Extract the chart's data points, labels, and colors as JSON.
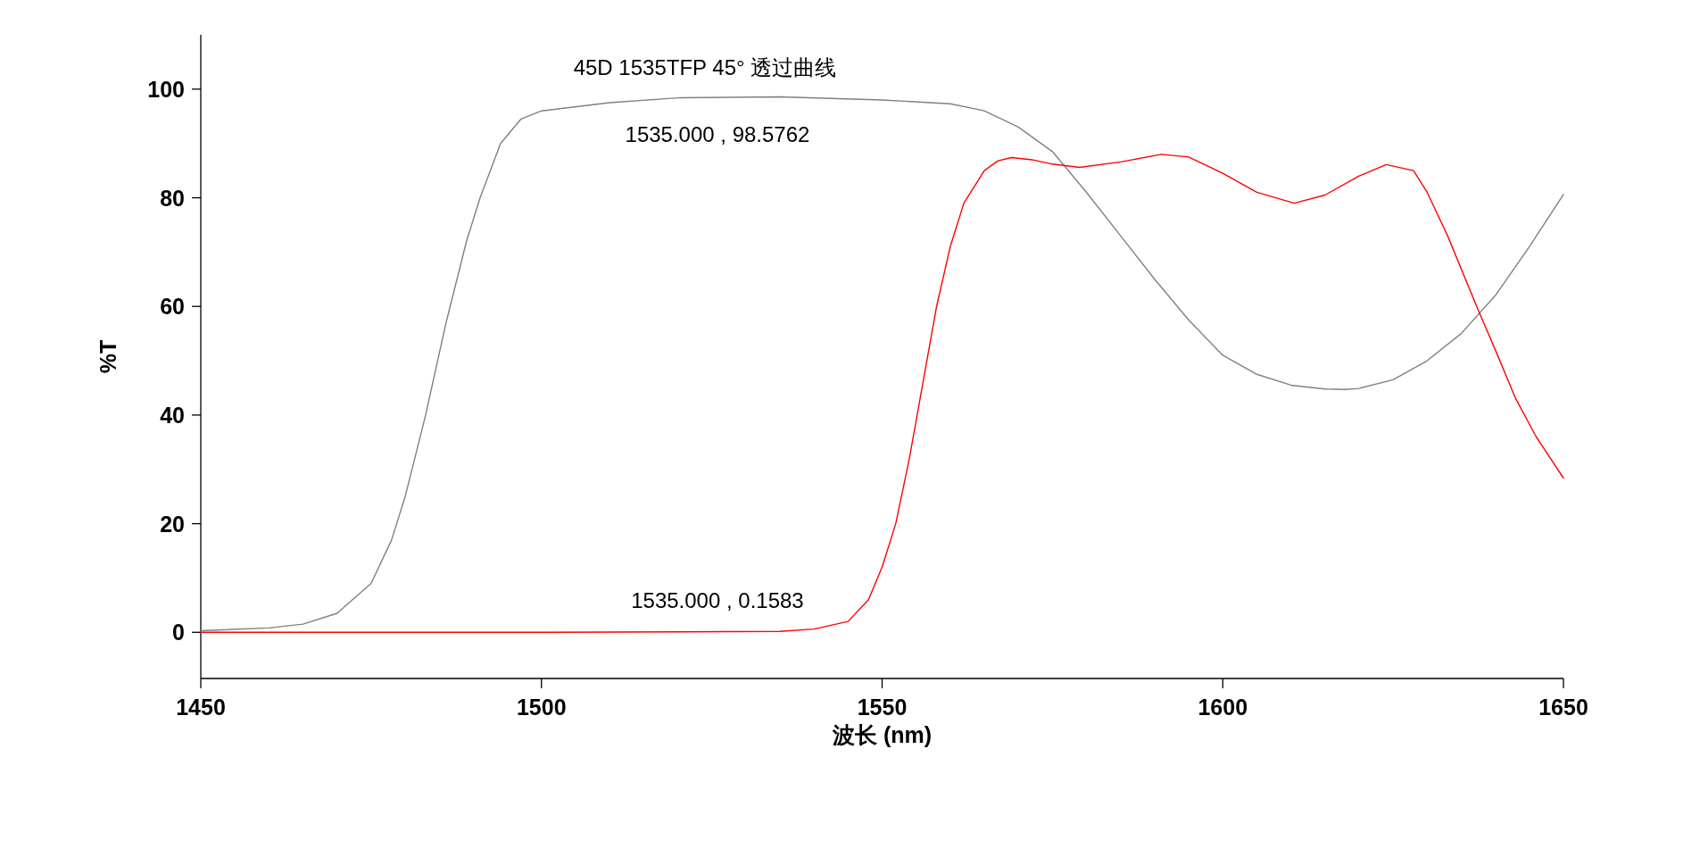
{
  "chart_data": {
    "type": "line",
    "title": "45D 1535TFP 45° 透过曲线",
    "xlabel": "波长 (nm)",
    "ylabel": "%T",
    "xlim": [
      1450,
      1650
    ],
    "ylim": [
      -8.5,
      110
    ],
    "xticks": [
      1450,
      1500,
      1550,
      1600,
      1650
    ],
    "yticks": [
      0,
      20,
      40,
      60,
      80,
      100
    ],
    "series": [
      {
        "color": "#808080",
        "x": [
          1450,
          1460,
          1465,
          1470,
          1475,
          1478,
          1480,
          1483,
          1486,
          1489,
          1491,
          1494,
          1497,
          1500,
          1510,
          1520,
          1535,
          1550,
          1560,
          1565,
          1570,
          1575,
          1580,
          1585,
          1590,
          1595,
          1600,
          1605,
          1610,
          1615,
          1618,
          1620,
          1625,
          1630,
          1635,
          1640,
          1645,
          1650
        ],
        "values": [
          0.3,
          0.8,
          1.5,
          3.5,
          9,
          17,
          25,
          40,
          57,
          72,
          80,
          90,
          94.5,
          96,
          97.5,
          98.4,
          98.5762,
          98,
          97.3,
          96,
          93,
          88.5,
          81,
          73,
          65,
          57.5,
          51,
          47.5,
          45.5,
          44.8,
          44.7,
          44.9,
          46.5,
          50,
          55,
          62,
          71,
          80.6
        ]
      },
      {
        "color": "#ff0000",
        "x": [
          1450,
          1500,
          1535,
          1540,
          1545,
          1548,
          1550,
          1552,
          1554,
          1556,
          1558,
          1560,
          1562,
          1565,
          1567,
          1569,
          1572,
          1575,
          1579,
          1585,
          1591,
          1595,
          1600,
          1605,
          1610.5,
          1615,
          1620,
          1624,
          1628,
          1630,
          1633,
          1637.5,
          1640,
          1643,
          1646,
          1650
        ],
        "values": [
          0,
          0,
          0.1583,
          0.6,
          2,
          6,
          12,
          20,
          32,
          46,
          60,
          71,
          79,
          85,
          86.8,
          87.4,
          87,
          86.2,
          85.6,
          86.6,
          88,
          87.5,
          84.5,
          81,
          79,
          80.5,
          84,
          86.1,
          85,
          81,
          73,
          59.3,
          52,
          43,
          36,
          28.4
        ]
      }
    ],
    "annotations": [
      {
        "text": "1535.000 , 98.5762",
        "x": 1535,
        "y": 98.5762
      },
      {
        "text": "1535.000 , 0.1583",
        "x": 1535,
        "y": 0.1583
      }
    ]
  }
}
